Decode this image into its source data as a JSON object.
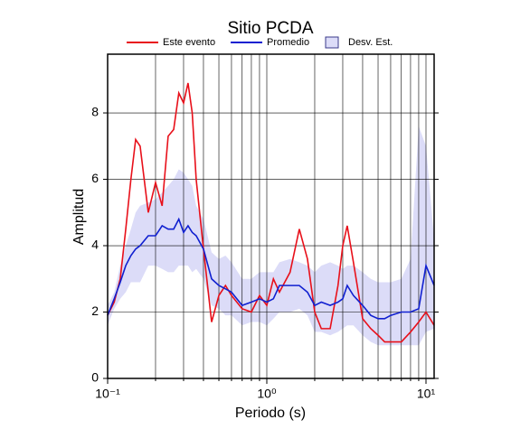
{
  "chart_data": {
    "type": "line",
    "title": "Sitio PCDA",
    "xlabel": "Periodo (s)",
    "ylabel": "Amplitud",
    "xscale": "log",
    "xlim": [
      0.1,
      11.25
    ],
    "ylim": [
      0,
      9.77
    ],
    "xticks": [
      {
        "value": 0.1,
        "label": "10⁻¹"
      },
      {
        "value": 1,
        "label": "10⁰"
      },
      {
        "value": 10,
        "label": "10¹"
      }
    ],
    "xminor": [
      0.2,
      0.3,
      0.4,
      0.5,
      0.6,
      0.7,
      0.8,
      0.9,
      2,
      3,
      4,
      5,
      6,
      7,
      8,
      9
    ],
    "yticks": [
      0,
      2,
      4,
      6,
      8
    ],
    "grid": true,
    "x": [
      0.1,
      0.11,
      0.12,
      0.13,
      0.14,
      0.15,
      0.16,
      0.18,
      0.2,
      0.22,
      0.24,
      0.26,
      0.28,
      0.3,
      0.32,
      0.34,
      0.36,
      0.4,
      0.45,
      0.5,
      0.55,
      0.6,
      0.7,
      0.8,
      0.9,
      1.0,
      1.1,
      1.2,
      1.4,
      1.6,
      1.8,
      2.0,
      2.2,
      2.5,
      2.8,
      3.0,
      3.2,
      3.5,
      4,
      4.5,
      5,
      5.5,
      6,
      7,
      8,
      9,
      10,
      11.25
    ],
    "band": {
      "name": "Desv. Est.",
      "color": "#dcdcf8",
      "edge": "#3a3a8a",
      "upper": [
        2.2,
        2.6,
        3.4,
        4.0,
        4.5,
        5.0,
        5.2,
        5.3,
        5.4,
        5.6,
        5.8,
        6.0,
        6.3,
        6.2,
        6.0,
        5.8,
        5.2,
        4.8,
        3.8,
        3.6,
        3.7,
        3.5,
        3.0,
        3.0,
        3.2,
        3.2,
        3.2,
        3.5,
        3.6,
        3.5,
        3.4,
        3.2,
        3.4,
        3.5,
        3.4,
        3.3,
        3.4,
        3.4,
        3.2,
        3.0,
        2.9,
        2.9,
        2.9,
        3.0,
        3.6,
        7.6,
        7.0,
        4.2
      ],
      "lower": [
        1.6,
        2.1,
        2.4,
        2.6,
        2.9,
        2.9,
        2.9,
        3.4,
        3.4,
        3.3,
        3.2,
        3.2,
        3.4,
        3.4,
        3.4,
        3.2,
        3.3,
        3.0,
        2.2,
        2.1,
        1.9,
        1.9,
        1.6,
        1.7,
        1.7,
        1.6,
        1.8,
        2.0,
        2.0,
        2.1,
        1.9,
        1.4,
        1.4,
        1.3,
        1.4,
        1.5,
        1.6,
        1.6,
        1.3,
        1.1,
        1.0,
        1.0,
        1.0,
        1.0,
        1.0,
        1.0,
        1.4,
        1.5
      ]
    },
    "series": [
      {
        "name": "Este evento",
        "color": "#e8101a",
        "values": [
          1.9,
          2.3,
          3.0,
          4.5,
          6.0,
          7.2,
          7.0,
          5.0,
          5.9,
          5.2,
          7.3,
          7.5,
          8.6,
          8.3,
          8.9,
          8.0,
          6.0,
          3.9,
          1.7,
          2.5,
          2.8,
          2.5,
          2.1,
          2.0,
          2.5,
          2.2,
          3.0,
          2.6,
          3.2,
          4.5,
          3.6,
          2.0,
          1.5,
          1.5,
          2.8,
          4.0,
          4.6,
          3.5,
          1.8,
          1.5,
          1.3,
          1.1,
          1.1,
          1.1,
          1.4,
          1.7,
          2.0,
          1.6
        ]
      },
      {
        "name": "Promedio",
        "color": "#1020d0",
        "values": [
          1.9,
          2.4,
          2.9,
          3.4,
          3.7,
          3.9,
          4.0,
          4.3,
          4.3,
          4.6,
          4.5,
          4.5,
          4.8,
          4.4,
          4.6,
          4.4,
          4.3,
          3.9,
          3.0,
          2.8,
          2.7,
          2.6,
          2.2,
          2.3,
          2.4,
          2.3,
          2.4,
          2.8,
          2.8,
          2.8,
          2.6,
          2.2,
          2.3,
          2.2,
          2.3,
          2.4,
          2.8,
          2.5,
          2.2,
          1.9,
          1.8,
          1.8,
          1.9,
          2.0,
          2.0,
          2.1,
          3.4,
          2.8
        ]
      }
    ]
  }
}
